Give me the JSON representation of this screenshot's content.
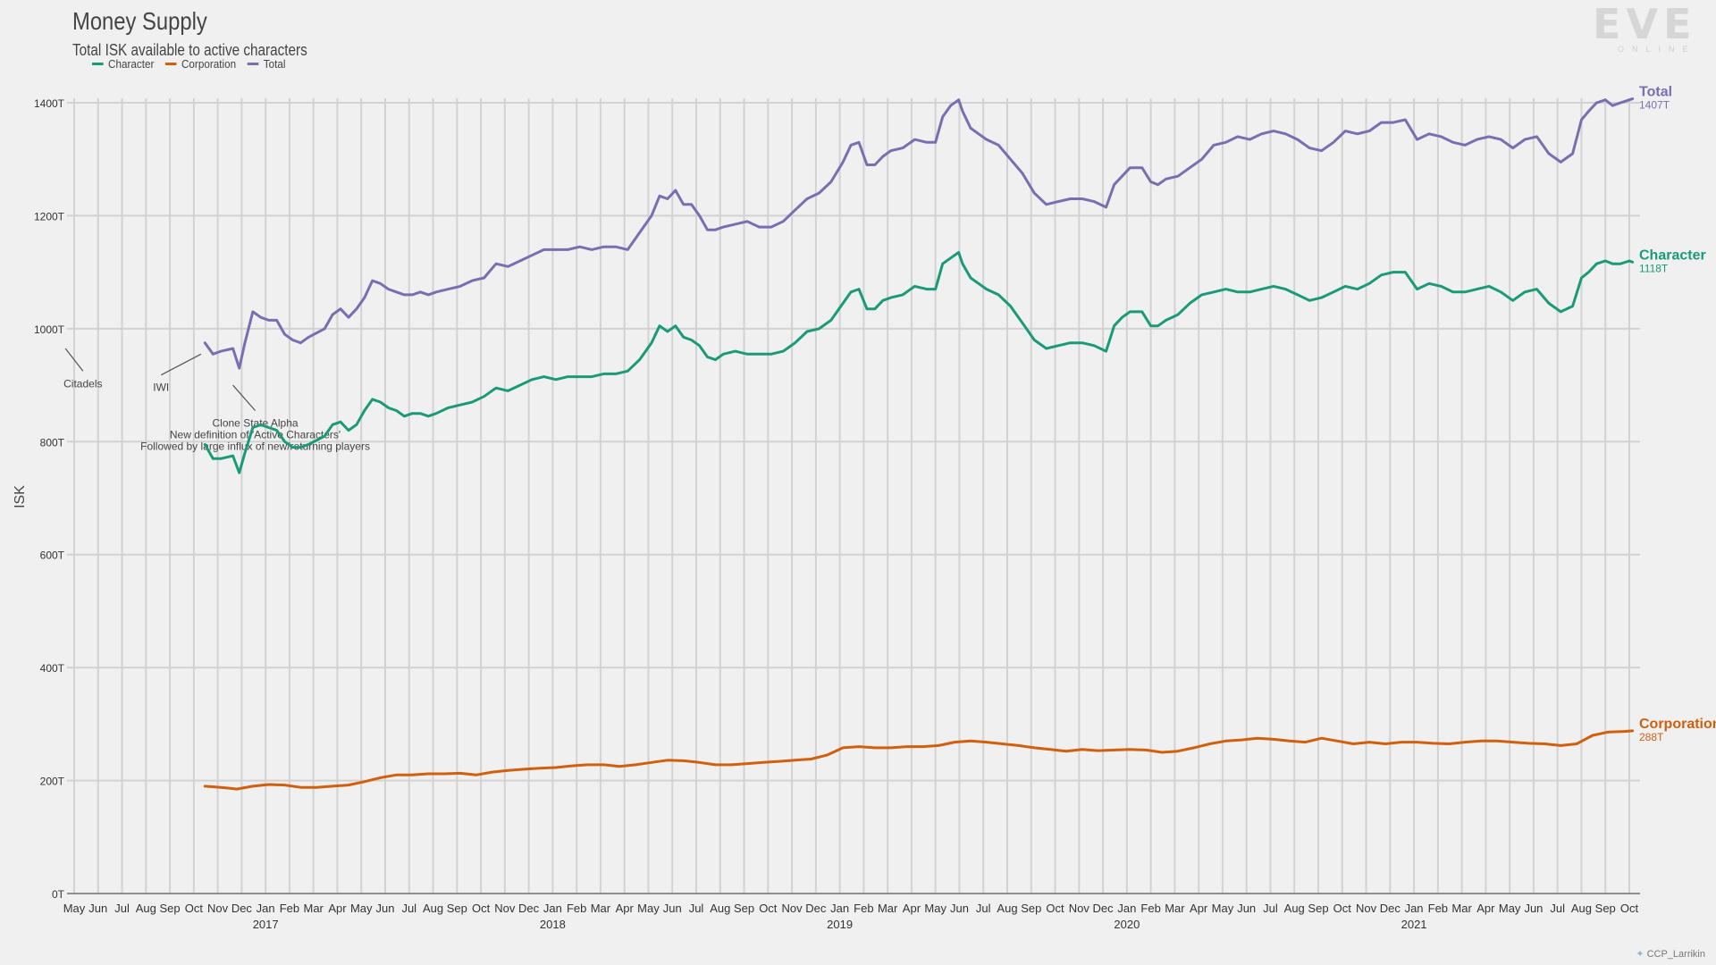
{
  "chart_data": {
    "type": "line",
    "title": "Money Supply",
    "subtitle": "Total ISK available to active characters",
    "ylabel": "ISK",
    "xlabel": "",
    "ylim": [
      0,
      1400
    ],
    "yticks": [
      0,
      200,
      400,
      600,
      800,
      1000,
      1200,
      1400
    ],
    "ytick_labels": [
      "0T",
      "200T",
      "400T",
      "600T",
      "800T",
      "1000T",
      "1200T",
      "1400T"
    ],
    "grid": true,
    "legend_placement": "top-left",
    "x_start": "2016-05",
    "x_end": "2021-10",
    "month_labels": [
      "May",
      "Jun",
      "Jul",
      "Aug",
      "Sep",
      "Oct",
      "Nov",
      "Dec",
      "Jan",
      "Feb",
      "Mar",
      "Apr",
      "May",
      "Jun",
      "Jul",
      "Aug",
      "Sep",
      "Oct",
      "Nov",
      "Dec",
      "Jan",
      "Feb",
      "Mar",
      "Apr",
      "May",
      "Jun",
      "Jul",
      "Aug",
      "Sep",
      "Oct",
      "Nov",
      "Dec",
      "Jan",
      "Feb",
      "Mar",
      "Apr",
      "May",
      "Jun",
      "Jul",
      "Aug",
      "Sep",
      "Oct",
      "Nov",
      "Dec",
      "Jan",
      "Feb",
      "Mar",
      "Apr",
      "May",
      "Jun",
      "Jul",
      "Aug",
      "Sep",
      "Oct",
      "Nov",
      "Dec",
      "Jan",
      "Feb",
      "Mar",
      "Apr",
      "May",
      "Jun",
      "Jul",
      "Aug",
      "Sep",
      "Oct"
    ],
    "year_labels": [
      {
        "label": "2017",
        "month": "2017-01"
      },
      {
        "label": "2018",
        "month": "2018-01"
      },
      {
        "label": "2019",
        "month": "2019-01"
      },
      {
        "label": "2020",
        "month": "2020-01"
      },
      {
        "label": "2021",
        "month": "2021-01"
      }
    ],
    "series": [
      {
        "name": "Total",
        "color": "#7b6eb0",
        "end_label": "1407T",
        "x": [
          "2016-10-15",
          "2016-10-25",
          "2016-11-05",
          "2016-11-20",
          "2016-11-28",
          "2016-12-05",
          "2016-12-15",
          "2016-12-25",
          "2017-01-05",
          "2017-01-15",
          "2017-01-25",
          "2017-02-05",
          "2017-02-15",
          "2017-02-25",
          "2017-03-15",
          "2017-03-25",
          "2017-04-05",
          "2017-04-15",
          "2017-04-25",
          "2017-05-05",
          "2017-05-15",
          "2017-05-25",
          "2017-06-05",
          "2017-06-15",
          "2017-06-25",
          "2017-07-05",
          "2017-07-15",
          "2017-07-25",
          "2017-08-05",
          "2017-08-20",
          "2017-09-05",
          "2017-09-20",
          "2017-10-05",
          "2017-10-20",
          "2017-11-05",
          "2017-11-20",
          "2017-12-05",
          "2017-12-20",
          "2018-01-05",
          "2018-01-20",
          "2018-02-05",
          "2018-02-20",
          "2018-03-05",
          "2018-03-20",
          "2018-04-05",
          "2018-04-20",
          "2018-05-05",
          "2018-05-15",
          "2018-05-25",
          "2018-06-05",
          "2018-06-15",
          "2018-06-25",
          "2018-07-05",
          "2018-07-15",
          "2018-07-25",
          "2018-08-05",
          "2018-08-20",
          "2018-09-05",
          "2018-09-20",
          "2018-10-05",
          "2018-10-20",
          "2018-11-05",
          "2018-11-20",
          "2018-12-05",
          "2018-12-20",
          "2019-01-05",
          "2019-01-15",
          "2019-01-25",
          "2019-02-05",
          "2019-02-15",
          "2019-02-25",
          "2019-03-05",
          "2019-03-20",
          "2019-04-05",
          "2019-04-20",
          "2019-05-01",
          "2019-05-10",
          "2019-05-20",
          "2019-05-30",
          "2019-06-05",
          "2019-06-15",
          "2019-06-25",
          "2019-07-05",
          "2019-07-20",
          "2019-08-05",
          "2019-08-20",
          "2019-09-05",
          "2019-09-20",
          "2019-10-05",
          "2019-10-20",
          "2019-11-05",
          "2019-11-20",
          "2019-12-05",
          "2019-12-15",
          "2019-12-25",
          "2020-01-05",
          "2020-01-20",
          "2020-02-01",
          "2020-02-10",
          "2020-02-20",
          "2020-03-05",
          "2020-03-20",
          "2020-04-05",
          "2020-04-20",
          "2020-05-05",
          "2020-05-20",
          "2020-06-05",
          "2020-06-20",
          "2020-07-05",
          "2020-07-20",
          "2020-08-05",
          "2020-08-20",
          "2020-09-05",
          "2020-09-20",
          "2020-10-05",
          "2020-10-20",
          "2020-11-05",
          "2020-11-20",
          "2020-12-05",
          "2020-12-20",
          "2021-01-05",
          "2021-01-20",
          "2021-02-05",
          "2021-02-20",
          "2021-03-05",
          "2021-03-20",
          "2021-04-05",
          "2021-04-20",
          "2021-05-05",
          "2021-05-20",
          "2021-06-05",
          "2021-06-20",
          "2021-07-05",
          "2021-07-20",
          "2021-08-01",
          "2021-08-10",
          "2021-08-20",
          "2021-09-01",
          "2021-09-10",
          "2021-09-20",
          "2021-10-01",
          "2021-10-05"
        ],
        "y": [
          975,
          955,
          960,
          965,
          930,
          975,
          1030,
          1020,
          1015,
          1015,
          990,
          980,
          975,
          985,
          1000,
          1025,
          1035,
          1020,
          1035,
          1055,
          1085,
          1080,
          1070,
          1065,
          1060,
          1060,
          1065,
          1060,
          1065,
          1070,
          1075,
          1085,
          1090,
          1115,
          1110,
          1120,
          1130,
          1140,
          1140,
          1140,
          1145,
          1140,
          1145,
          1145,
          1140,
          1170,
          1200,
          1235,
          1230,
          1245,
          1220,
          1220,
          1200,
          1175,
          1175,
          1180,
          1185,
          1190,
          1180,
          1180,
          1190,
          1210,
          1230,
          1240,
          1260,
          1295,
          1325,
          1330,
          1290,
          1290,
          1305,
          1315,
          1320,
          1335,
          1330,
          1330,
          1375,
          1395,
          1405,
          1385,
          1355,
          1345,
          1335,
          1325,
          1300,
          1275,
          1240,
          1220,
          1225,
          1230,
          1230,
          1225,
          1215,
          1255,
          1270,
          1285,
          1285,
          1260,
          1255,
          1265,
          1270,
          1285,
          1300,
          1325,
          1330,
          1340,
          1335,
          1345,
          1350,
          1345,
          1335,
          1320,
          1315,
          1330,
          1350,
          1345,
          1350,
          1365,
          1365,
          1370,
          1335,
          1345,
          1340,
          1330,
          1325,
          1335,
          1340,
          1335,
          1320,
          1335,
          1340,
          1310,
          1295,
          1310,
          1370,
          1385,
          1400,
          1405,
          1395,
          1400,
          1405,
          1407
        ]
      },
      {
        "name": "Character",
        "color": "#1a9a76",
        "end_label": "1118T",
        "x": [
          "2016-10-15",
          "2016-10-25",
          "2016-11-05",
          "2016-11-20",
          "2016-11-28",
          "2016-12-05",
          "2016-12-15",
          "2016-12-25",
          "2017-01-05",
          "2017-01-15",
          "2017-01-25",
          "2017-02-05",
          "2017-02-15",
          "2017-02-25",
          "2017-03-15",
          "2017-03-25",
          "2017-04-05",
          "2017-04-15",
          "2017-04-25",
          "2017-05-05",
          "2017-05-15",
          "2017-05-25",
          "2017-06-05",
          "2017-06-15",
          "2017-06-25",
          "2017-07-05",
          "2017-07-15",
          "2017-07-25",
          "2017-08-05",
          "2017-08-20",
          "2017-09-05",
          "2017-09-20",
          "2017-10-05",
          "2017-10-20",
          "2017-11-05",
          "2017-11-20",
          "2017-12-05",
          "2017-12-20",
          "2018-01-05",
          "2018-01-20",
          "2018-02-05",
          "2018-02-20",
          "2018-03-05",
          "2018-03-20",
          "2018-04-05",
          "2018-04-20",
          "2018-05-05",
          "2018-05-15",
          "2018-05-25",
          "2018-06-05",
          "2018-06-15",
          "2018-06-25",
          "2018-07-05",
          "2018-07-15",
          "2018-07-25",
          "2018-08-05",
          "2018-08-20",
          "2018-09-05",
          "2018-09-20",
          "2018-10-05",
          "2018-10-20",
          "2018-11-05",
          "2018-11-20",
          "2018-12-05",
          "2018-12-20",
          "2019-01-05",
          "2019-01-15",
          "2019-01-25",
          "2019-02-05",
          "2019-02-15",
          "2019-02-25",
          "2019-03-05",
          "2019-03-20",
          "2019-04-05",
          "2019-04-20",
          "2019-05-01",
          "2019-05-10",
          "2019-05-20",
          "2019-05-30",
          "2019-06-05",
          "2019-06-15",
          "2019-06-25",
          "2019-07-05",
          "2019-07-20",
          "2019-08-05",
          "2019-08-20",
          "2019-09-05",
          "2019-09-20",
          "2019-10-05",
          "2019-10-20",
          "2019-11-05",
          "2019-11-20",
          "2019-12-05",
          "2019-12-15",
          "2019-12-25",
          "2020-01-05",
          "2020-01-20",
          "2020-02-01",
          "2020-02-10",
          "2020-02-20",
          "2020-03-05",
          "2020-03-20",
          "2020-04-05",
          "2020-04-20",
          "2020-05-05",
          "2020-05-20",
          "2020-06-05",
          "2020-06-20",
          "2020-07-05",
          "2020-07-20",
          "2020-08-05",
          "2020-08-20",
          "2020-09-05",
          "2020-09-20",
          "2020-10-05",
          "2020-10-20",
          "2020-11-05",
          "2020-11-20",
          "2020-12-05",
          "2020-12-20",
          "2021-01-05",
          "2021-01-20",
          "2021-02-05",
          "2021-02-20",
          "2021-03-05",
          "2021-03-20",
          "2021-04-05",
          "2021-04-20",
          "2021-05-05",
          "2021-05-20",
          "2021-06-05",
          "2021-06-20",
          "2021-07-05",
          "2021-07-20",
          "2021-08-01",
          "2021-08-10",
          "2021-08-20",
          "2021-09-01",
          "2021-09-10",
          "2021-09-20",
          "2021-10-01",
          "2021-10-05"
        ],
        "y": [
          795,
          770,
          770,
          775,
          745,
          780,
          825,
          830,
          825,
          820,
          800,
          790,
          790,
          795,
          810,
          830,
          835,
          820,
          830,
          855,
          875,
          870,
          860,
          855,
          845,
          850,
          850,
          845,
          850,
          860,
          865,
          870,
          880,
          895,
          890,
          900,
          910,
          915,
          910,
          915,
          915,
          915,
          920,
          920,
          925,
          945,
          975,
          1005,
          995,
          1005,
          985,
          980,
          970,
          950,
          945,
          955,
          960,
          955,
          955,
          955,
          960,
          975,
          995,
          1000,
          1015,
          1045,
          1065,
          1070,
          1035,
          1035,
          1050,
          1055,
          1060,
          1075,
          1070,
          1070,
          1115,
          1125,
          1135,
          1115,
          1090,
          1080,
          1070,
          1060,
          1040,
          1010,
          980,
          965,
          970,
          975,
          975,
          970,
          960,
          1005,
          1020,
          1030,
          1030,
          1005,
          1005,
          1015,
          1025,
          1045,
          1060,
          1065,
          1070,
          1065,
          1065,
          1070,
          1075,
          1070,
          1060,
          1050,
          1055,
          1065,
          1075,
          1070,
          1080,
          1095,
          1100,
          1100,
          1070,
          1080,
          1075,
          1065,
          1065,
          1070,
          1075,
          1065,
          1050,
          1065,
          1070,
          1045,
          1030,
          1040,
          1090,
          1100,
          1115,
          1120,
          1115,
          1115,
          1120,
          1118
        ]
      },
      {
        "name": "Corporation",
        "color": "#d05f0e",
        "end_label": "288T",
        "x": [
          "2016-10-15",
          "2016-11-05",
          "2016-11-25",
          "2016-12-15",
          "2017-01-05",
          "2017-01-25",
          "2017-02-15",
          "2017-03-05",
          "2017-03-25",
          "2017-04-15",
          "2017-05-05",
          "2017-05-25",
          "2017-06-15",
          "2017-07-05",
          "2017-07-25",
          "2017-08-15",
          "2017-09-05",
          "2017-09-25",
          "2017-10-15",
          "2017-11-05",
          "2017-11-25",
          "2017-12-15",
          "2018-01-05",
          "2018-01-25",
          "2018-02-15",
          "2018-03-05",
          "2018-03-25",
          "2018-04-15",
          "2018-05-05",
          "2018-05-25",
          "2018-06-15",
          "2018-07-05",
          "2018-07-25",
          "2018-08-15",
          "2018-09-05",
          "2018-09-25",
          "2018-10-15",
          "2018-11-05",
          "2018-11-25",
          "2018-12-15",
          "2019-01-05",
          "2019-01-25",
          "2019-02-15",
          "2019-03-05",
          "2019-03-25",
          "2019-04-15",
          "2019-05-05",
          "2019-05-25",
          "2019-06-15",
          "2019-07-05",
          "2019-07-25",
          "2019-08-15",
          "2019-09-05",
          "2019-09-25",
          "2019-10-15",
          "2019-11-05",
          "2019-11-25",
          "2019-12-15",
          "2020-01-05",
          "2020-01-25",
          "2020-02-15",
          "2020-03-05",
          "2020-03-25",
          "2020-04-15",
          "2020-05-05",
          "2020-05-25",
          "2020-06-15",
          "2020-07-05",
          "2020-07-25",
          "2020-08-15",
          "2020-09-05",
          "2020-09-25",
          "2020-10-15",
          "2020-11-05",
          "2020-11-25",
          "2020-12-15",
          "2021-01-05",
          "2021-01-25",
          "2021-02-15",
          "2021-03-05",
          "2021-03-25",
          "2021-04-15",
          "2021-05-05",
          "2021-05-25",
          "2021-06-15",
          "2021-07-05",
          "2021-07-25",
          "2021-08-15",
          "2021-09-05",
          "2021-09-25",
          "2021-10-05"
        ],
        "y": [
          190,
          188,
          185,
          190,
          193,
          192,
          188,
          188,
          190,
          192,
          198,
          205,
          210,
          210,
          212,
          212,
          213,
          210,
          215,
          218,
          220,
          222,
          223,
          226,
          228,
          228,
          225,
          228,
          232,
          236,
          235,
          232,
          228,
          228,
          230,
          232,
          234,
          236,
          238,
          245,
          258,
          260,
          258,
          258,
          260,
          260,
          262,
          268,
          270,
          268,
          265,
          262,
          258,
          255,
          252,
          255,
          253,
          254,
          255,
          254,
          250,
          252,
          258,
          265,
          270,
          272,
          275,
          273,
          270,
          268,
          275,
          270,
          265,
          268,
          265,
          268,
          268,
          266,
          265,
          268,
          270,
          270,
          268,
          266,
          265,
          262,
          265,
          280,
          286,
          287,
          288
        ]
      }
    ],
    "annotations": [
      {
        "lines": [
          "Citadels"
        ],
        "x": "2016-04-20",
        "y": 965,
        "tx": "2016-05-12",
        "ty": 925
      },
      {
        "lines": [
          "IWI"
        ],
        "x": "2016-10-10",
        "y": 955,
        "tx": "2016-08-20",
        "ty": 918
      },
      {
        "lines": [
          "Clone State Alpha",
          "New definition of 'Active Characters'",
          "Followed by large influx of new/returning players"
        ],
        "x": "2016-11-20",
        "y": 900,
        "tx": "2016-12-18",
        "ty": 855
      }
    ]
  },
  "header": {
    "title": "Money Supply",
    "subtitle": "Total ISK available to active characters",
    "legend": [
      {
        "label": "Character",
        "color": "#1a9a76"
      },
      {
        "label": "Corporation",
        "color": "#d05f0e"
      },
      {
        "label": "Total",
        "color": "#7b6eb0"
      }
    ]
  },
  "branding": {
    "logo_main": "EVE",
    "logo_sub": "ONLINE",
    "credit": "CCP_Larrikin",
    "credit_icon": "twitter-bird-icon"
  }
}
